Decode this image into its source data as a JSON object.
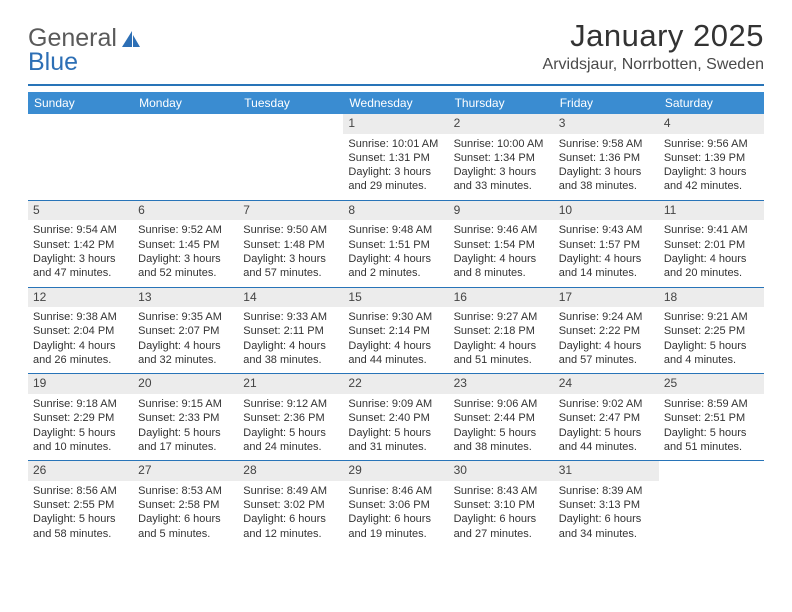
{
  "logo": {
    "part1": "General",
    "part2": "Blue"
  },
  "title": "January 2025",
  "location": "Arvidsjaur, Norrbotten, Sweden",
  "colors": {
    "header_bg": "#3a8cd1",
    "divider": "#2874b8",
    "daynum_bg": "#ececec",
    "logo_accent": "#2d6fb5"
  },
  "weekdays": [
    "Sunday",
    "Monday",
    "Tuesday",
    "Wednesday",
    "Thursday",
    "Friday",
    "Saturday"
  ],
  "weeks": [
    [
      {
        "n": "",
        "sunrise": "",
        "sunset": "",
        "daylight": ""
      },
      {
        "n": "",
        "sunrise": "",
        "sunset": "",
        "daylight": ""
      },
      {
        "n": "",
        "sunrise": "",
        "sunset": "",
        "daylight": ""
      },
      {
        "n": "1",
        "sunrise": "Sunrise: 10:01 AM",
        "sunset": "Sunset: 1:31 PM",
        "daylight": "Daylight: 3 hours and 29 minutes."
      },
      {
        "n": "2",
        "sunrise": "Sunrise: 10:00 AM",
        "sunset": "Sunset: 1:34 PM",
        "daylight": "Daylight: 3 hours and 33 minutes."
      },
      {
        "n": "3",
        "sunrise": "Sunrise: 9:58 AM",
        "sunset": "Sunset: 1:36 PM",
        "daylight": "Daylight: 3 hours and 38 minutes."
      },
      {
        "n": "4",
        "sunrise": "Sunrise: 9:56 AM",
        "sunset": "Sunset: 1:39 PM",
        "daylight": "Daylight: 3 hours and 42 minutes."
      }
    ],
    [
      {
        "n": "5",
        "sunrise": "Sunrise: 9:54 AM",
        "sunset": "Sunset: 1:42 PM",
        "daylight": "Daylight: 3 hours and 47 minutes."
      },
      {
        "n": "6",
        "sunrise": "Sunrise: 9:52 AM",
        "sunset": "Sunset: 1:45 PM",
        "daylight": "Daylight: 3 hours and 52 minutes."
      },
      {
        "n": "7",
        "sunrise": "Sunrise: 9:50 AM",
        "sunset": "Sunset: 1:48 PM",
        "daylight": "Daylight: 3 hours and 57 minutes."
      },
      {
        "n": "8",
        "sunrise": "Sunrise: 9:48 AM",
        "sunset": "Sunset: 1:51 PM",
        "daylight": "Daylight: 4 hours and 2 minutes."
      },
      {
        "n": "9",
        "sunrise": "Sunrise: 9:46 AM",
        "sunset": "Sunset: 1:54 PM",
        "daylight": "Daylight: 4 hours and 8 minutes."
      },
      {
        "n": "10",
        "sunrise": "Sunrise: 9:43 AM",
        "sunset": "Sunset: 1:57 PM",
        "daylight": "Daylight: 4 hours and 14 minutes."
      },
      {
        "n": "11",
        "sunrise": "Sunrise: 9:41 AM",
        "sunset": "Sunset: 2:01 PM",
        "daylight": "Daylight: 4 hours and 20 minutes."
      }
    ],
    [
      {
        "n": "12",
        "sunrise": "Sunrise: 9:38 AM",
        "sunset": "Sunset: 2:04 PM",
        "daylight": "Daylight: 4 hours and 26 minutes."
      },
      {
        "n": "13",
        "sunrise": "Sunrise: 9:35 AM",
        "sunset": "Sunset: 2:07 PM",
        "daylight": "Daylight: 4 hours and 32 minutes."
      },
      {
        "n": "14",
        "sunrise": "Sunrise: 9:33 AM",
        "sunset": "Sunset: 2:11 PM",
        "daylight": "Daylight: 4 hours and 38 minutes."
      },
      {
        "n": "15",
        "sunrise": "Sunrise: 9:30 AM",
        "sunset": "Sunset: 2:14 PM",
        "daylight": "Daylight: 4 hours and 44 minutes."
      },
      {
        "n": "16",
        "sunrise": "Sunrise: 9:27 AM",
        "sunset": "Sunset: 2:18 PM",
        "daylight": "Daylight: 4 hours and 51 minutes."
      },
      {
        "n": "17",
        "sunrise": "Sunrise: 9:24 AM",
        "sunset": "Sunset: 2:22 PM",
        "daylight": "Daylight: 4 hours and 57 minutes."
      },
      {
        "n": "18",
        "sunrise": "Sunrise: 9:21 AM",
        "sunset": "Sunset: 2:25 PM",
        "daylight": "Daylight: 5 hours and 4 minutes."
      }
    ],
    [
      {
        "n": "19",
        "sunrise": "Sunrise: 9:18 AM",
        "sunset": "Sunset: 2:29 PM",
        "daylight": "Daylight: 5 hours and 10 minutes."
      },
      {
        "n": "20",
        "sunrise": "Sunrise: 9:15 AM",
        "sunset": "Sunset: 2:33 PM",
        "daylight": "Daylight: 5 hours and 17 minutes."
      },
      {
        "n": "21",
        "sunrise": "Sunrise: 9:12 AM",
        "sunset": "Sunset: 2:36 PM",
        "daylight": "Daylight: 5 hours and 24 minutes."
      },
      {
        "n": "22",
        "sunrise": "Sunrise: 9:09 AM",
        "sunset": "Sunset: 2:40 PM",
        "daylight": "Daylight: 5 hours and 31 minutes."
      },
      {
        "n": "23",
        "sunrise": "Sunrise: 9:06 AM",
        "sunset": "Sunset: 2:44 PM",
        "daylight": "Daylight: 5 hours and 38 minutes."
      },
      {
        "n": "24",
        "sunrise": "Sunrise: 9:02 AM",
        "sunset": "Sunset: 2:47 PM",
        "daylight": "Daylight: 5 hours and 44 minutes."
      },
      {
        "n": "25",
        "sunrise": "Sunrise: 8:59 AM",
        "sunset": "Sunset: 2:51 PM",
        "daylight": "Daylight: 5 hours and 51 minutes."
      }
    ],
    [
      {
        "n": "26",
        "sunrise": "Sunrise: 8:56 AM",
        "sunset": "Sunset: 2:55 PM",
        "daylight": "Daylight: 5 hours and 58 minutes."
      },
      {
        "n": "27",
        "sunrise": "Sunrise: 8:53 AM",
        "sunset": "Sunset: 2:58 PM",
        "daylight": "Daylight: 6 hours and 5 minutes."
      },
      {
        "n": "28",
        "sunrise": "Sunrise: 8:49 AM",
        "sunset": "Sunset: 3:02 PM",
        "daylight": "Daylight: 6 hours and 12 minutes."
      },
      {
        "n": "29",
        "sunrise": "Sunrise: 8:46 AM",
        "sunset": "Sunset: 3:06 PM",
        "daylight": "Daylight: 6 hours and 19 minutes."
      },
      {
        "n": "30",
        "sunrise": "Sunrise: 8:43 AM",
        "sunset": "Sunset: 3:10 PM",
        "daylight": "Daylight: 6 hours and 27 minutes."
      },
      {
        "n": "31",
        "sunrise": "Sunrise: 8:39 AM",
        "sunset": "Sunset: 3:13 PM",
        "daylight": "Daylight: 6 hours and 34 minutes."
      },
      {
        "n": "",
        "sunrise": "",
        "sunset": "",
        "daylight": ""
      }
    ]
  ]
}
